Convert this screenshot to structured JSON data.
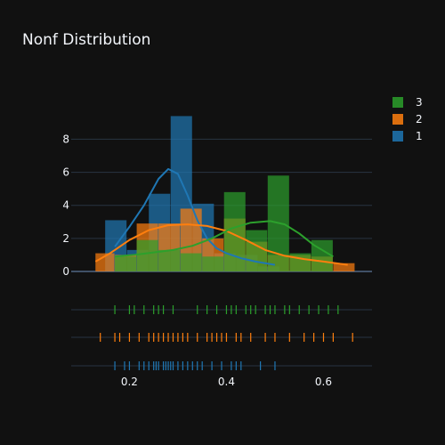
{
  "chart_data": {
    "type": "histogram",
    "title": "Nonf Distribution",
    "xlabel": "",
    "ylabel": "",
    "xlim": [
      0.08,
      0.7
    ],
    "ylim": [
      0,
      10.5
    ],
    "xticks": [
      0.2,
      0.4,
      0.6
    ],
    "xtick_labels": [
      "0.2",
      "0.4",
      "0.6"
    ],
    "yticks": [
      0,
      2,
      4,
      6,
      8
    ],
    "ytick_labels": [
      "0",
      "2",
      "4",
      "6",
      "8"
    ],
    "grid": true,
    "legend_position": "top-right",
    "legend": [
      {
        "label": "3",
        "color": "#2ca02c"
      },
      {
        "label": "2",
        "color": "#ff7f0e"
      },
      {
        "label": "1",
        "color": "#1f77b4"
      }
    ],
    "series": [
      {
        "name": "1",
        "color": "#1f77b4",
        "bins": [
          {
            "x0": 0.15,
            "x1": 0.195,
            "y": 3.1
          },
          {
            "x0": 0.195,
            "x1": 0.24,
            "y": 1.3
          },
          {
            "x0": 0.24,
            "x1": 0.285,
            "y": 4.7
          },
          {
            "x0": 0.285,
            "x1": 0.33,
            "y": 9.4
          },
          {
            "x0": 0.33,
            "x1": 0.375,
            "y": 4.1
          },
          {
            "x0": 0.375,
            "x1": 0.42,
            "y": 1.1
          },
          {
            "x0": 0.42,
            "x1": 0.465,
            "y": 1.0
          },
          {
            "x0": 0.465,
            "x1": 0.51,
            "y": 0.3
          }
        ],
        "kde": {
          "x": [
            0.17,
            0.2,
            0.23,
            0.26,
            0.28,
            0.3,
            0.32,
            0.34,
            0.36,
            0.38,
            0.4,
            0.43,
            0.46,
            0.5
          ],
          "y": [
            1.5,
            2.7,
            4.0,
            5.6,
            6.2,
            5.9,
            4.6,
            3.1,
            2.0,
            1.4,
            1.1,
            0.8,
            0.6,
            0.4
          ]
        },
        "rug": [
          0.17,
          0.19,
          0.2,
          0.22,
          0.23,
          0.24,
          0.25,
          0.255,
          0.26,
          0.27,
          0.275,
          0.28,
          0.285,
          0.29,
          0.3,
          0.31,
          0.32,
          0.33,
          0.34,
          0.35,
          0.37,
          0.39,
          0.41,
          0.42,
          0.43,
          0.47,
          0.5
        ]
      },
      {
        "name": "2",
        "color": "#ff7f0e",
        "bins": [
          {
            "x0": 0.13,
            "x1": 0.17,
            "y": 1.1
          },
          {
            "x0": 0.17,
            "x1": 0.215,
            "y": 1.0
          },
          {
            "x0": 0.215,
            "x1": 0.26,
            "y": 2.9
          },
          {
            "x0": 0.26,
            "x1": 0.305,
            "y": 2.9
          },
          {
            "x0": 0.305,
            "x1": 0.35,
            "y": 3.8
          },
          {
            "x0": 0.35,
            "x1": 0.395,
            "y": 2.0
          },
          {
            "x0": 0.395,
            "x1": 0.44,
            "y": 3.2
          },
          {
            "x0": 0.44,
            "x1": 0.485,
            "y": 1.8
          },
          {
            "x0": 0.485,
            "x1": 0.53,
            "y": 1.0
          },
          {
            "x0": 0.53,
            "x1": 0.575,
            "y": 1.0
          },
          {
            "x0": 0.575,
            "x1": 0.62,
            "y": 0.9
          },
          {
            "x0": 0.62,
            "x1": 0.665,
            "y": 0.5
          }
        ],
        "kde": {
          "x": [
            0.13,
            0.16,
            0.2,
            0.24,
            0.28,
            0.32,
            0.36,
            0.4,
            0.44,
            0.48,
            0.52,
            0.56,
            0.6,
            0.65
          ],
          "y": [
            0.6,
            1.1,
            1.9,
            2.5,
            2.8,
            2.85,
            2.75,
            2.45,
            1.9,
            1.3,
            0.95,
            0.75,
            0.6,
            0.4
          ]
        },
        "rug": [
          0.14,
          0.17,
          0.18,
          0.2,
          0.22,
          0.24,
          0.25,
          0.26,
          0.27,
          0.28,
          0.29,
          0.3,
          0.31,
          0.32,
          0.34,
          0.36,
          0.37,
          0.38,
          0.39,
          0.4,
          0.42,
          0.43,
          0.45,
          0.48,
          0.5,
          0.53,
          0.56,
          0.58,
          0.6,
          0.62,
          0.66
        ]
      },
      {
        "name": "3",
        "color": "#2ca02c",
        "bins": [
          {
            "x0": 0.17,
            "x1": 0.215,
            "y": 0.9
          },
          {
            "x0": 0.215,
            "x1": 0.26,
            "y": 1.9
          },
          {
            "x0": 0.26,
            "x1": 0.305,
            "y": 1.3
          },
          {
            "x0": 0.305,
            "x1": 0.35,
            "y": 1.1
          },
          {
            "x0": 0.35,
            "x1": 0.395,
            "y": 0.9
          },
          {
            "x0": 0.395,
            "x1": 0.44,
            "y": 4.8
          },
          {
            "x0": 0.44,
            "x1": 0.485,
            "y": 2.5
          },
          {
            "x0": 0.485,
            "x1": 0.53,
            "y": 5.8
          },
          {
            "x0": 0.53,
            "x1": 0.575,
            "y": 1.1
          },
          {
            "x0": 0.575,
            "x1": 0.62,
            "y": 1.9
          }
        ],
        "kde": {
          "x": [
            0.17,
            0.21,
            0.25,
            0.29,
            0.33,
            0.37,
            0.41,
            0.45,
            0.49,
            0.52,
            0.55,
            0.58,
            0.62
          ],
          "y": [
            0.9,
            1.0,
            1.15,
            1.3,
            1.55,
            2.0,
            2.6,
            2.95,
            3.05,
            2.85,
            2.3,
            1.6,
            0.9
          ]
        },
        "rug": [
          0.17,
          0.2,
          0.21,
          0.23,
          0.25,
          0.26,
          0.27,
          0.29,
          0.34,
          0.36,
          0.38,
          0.4,
          0.41,
          0.42,
          0.44,
          0.45,
          0.46,
          0.48,
          0.49,
          0.5,
          0.52,
          0.53,
          0.55,
          0.57,
          0.59,
          0.61,
          0.63
        ]
      }
    ]
  }
}
